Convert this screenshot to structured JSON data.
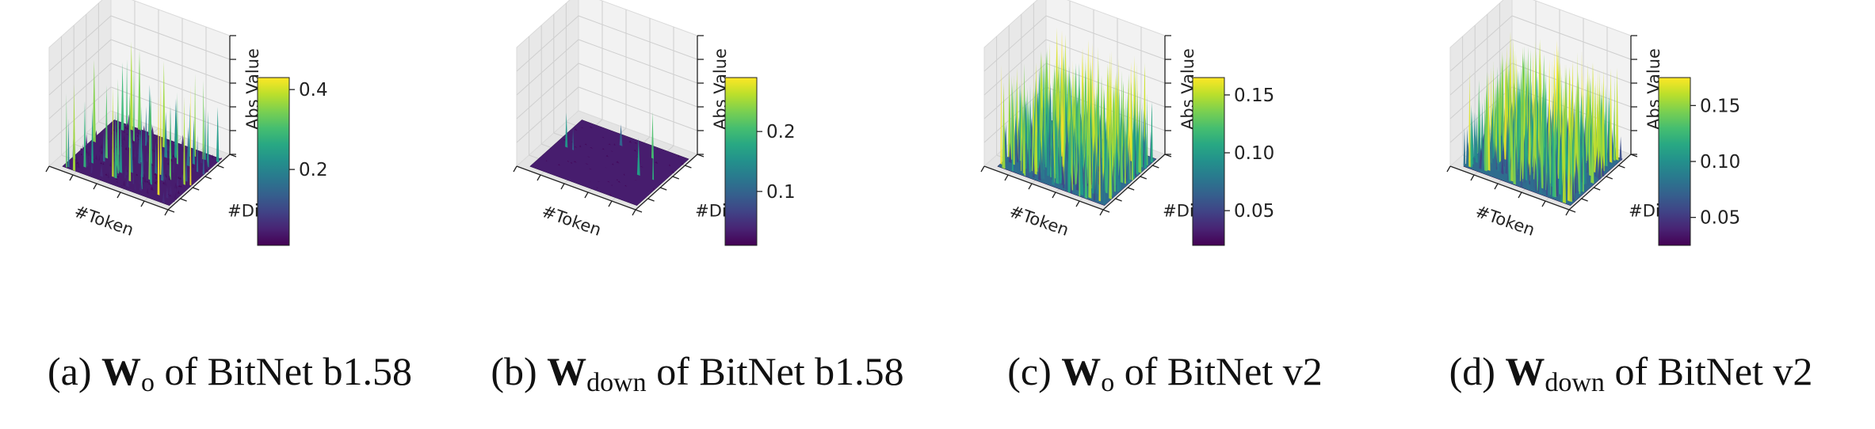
{
  "chart_data": [
    {
      "type": "surface3d",
      "xlabel": "#Token",
      "ylabel": "#Dim",
      "zlabel": "Abs Value",
      "colormap": "viridis",
      "colorbar_range": [
        0.01,
        0.43
      ],
      "colorbar_ticks": [
        "0.2",
        "0.4"
      ],
      "distribution": "sparse outlier spikes on low background",
      "surface_max": 0.43,
      "caption": {
        "prefix": "(a) ",
        "symbol": "W",
        "subscript": "o",
        "suffix": " of BitNet b1.58"
      }
    },
    {
      "type": "surface3d",
      "xlabel": "#Token",
      "ylabel": "#Dim",
      "zlabel": "Abs Value",
      "colormap": "viridis",
      "colorbar_range": [
        0.01,
        0.29
      ],
      "colorbar_ticks": [
        "0.1",
        "0.2"
      ],
      "distribution": "nearly flat with a few small spikes",
      "surface_max": 0.29,
      "caption": {
        "prefix": "(b) ",
        "symbol": "W",
        "subscript": "down",
        "suffix": " of BitNet b1.58"
      }
    },
    {
      "type": "surface3d",
      "xlabel": "#Token",
      "ylabel": "#Dim",
      "zlabel": "Abs Value",
      "colormap": "viridis",
      "colorbar_range": [
        0.02,
        0.165
      ],
      "colorbar_ticks": [
        "0.05",
        "0.10",
        "0.15"
      ],
      "distribution": "dense uniform field",
      "surface_max": 0.165,
      "caption": {
        "prefix": "(c) ",
        "symbol": "W",
        "subscript": "o",
        "suffix": " of BitNet v2"
      }
    },
    {
      "type": "surface3d",
      "xlabel": "#Token",
      "ylabel": "#Dim",
      "zlabel": "Abs Value",
      "colormap": "viridis",
      "colorbar_range": [
        0.025,
        0.175
      ],
      "colorbar_ticks": [
        "0.05",
        "0.10",
        "0.15"
      ],
      "distribution": "dense uniform field",
      "surface_max": 0.175,
      "caption": {
        "prefix": "(d) ",
        "symbol": "W",
        "subscript": "down",
        "suffix": " of BitNet v2"
      }
    }
  ]
}
